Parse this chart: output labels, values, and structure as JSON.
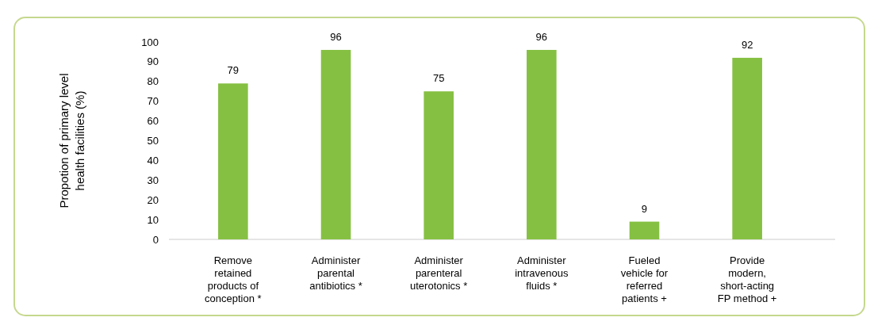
{
  "chart_data": {
    "type": "bar",
    "categories": [
      "Remove\nretained\nproducts of\nconception *",
      "Administer\nparental\nantibiotics *",
      "Administer\nparenteral\nuterotonics *",
      "Administer\nintravenous\nfluids *",
      "Fueled\nvehicle for\nreferred\npatients +",
      "Provide\nmodern,\nshort-acting\nFP method +"
    ],
    "values": [
      79,
      96,
      75,
      96,
      9,
      92
    ],
    "color": "#86c043",
    "ylabel": "Propotion of primary level\nhealth facilities  (%)",
    "ylim": [
      0,
      100
    ],
    "yticks": [
      0,
      10,
      20,
      30,
      40,
      50,
      60,
      70,
      80,
      90,
      100
    ],
    "data_labels": true
  }
}
